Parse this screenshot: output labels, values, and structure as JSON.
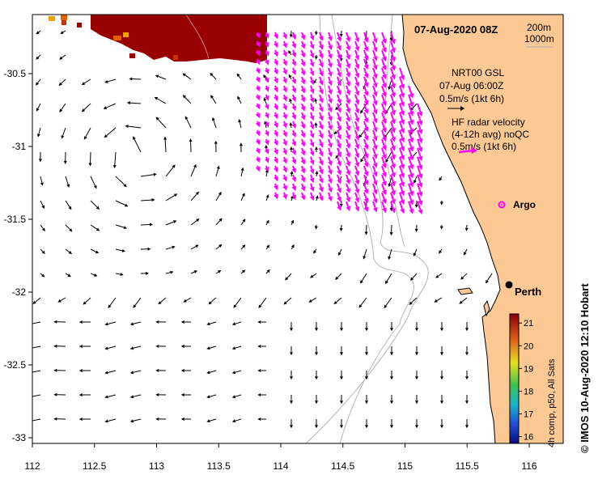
{
  "title": "07-Aug-2020 08Z",
  "depth_legend": [
    "200m",
    "1000m"
  ],
  "model_legend": {
    "lines": [
      "NRT00 GSL",
      "07-Aug 06:00Z",
      "0.5m/s (1kt 6h)"
    ],
    "arrow_color": "#000000"
  },
  "radar_legend": {
    "lines": [
      "HF radar velocity",
      "(4-12h avg) noQC",
      "0.5m/s (1kt 6h)"
    ],
    "arrow_color": "#ff00ff"
  },
  "places": {
    "perth": "Perth",
    "argo": "Argo"
  },
  "colorbar": {
    "label": "4h comp, p50, All Sats",
    "ticks": [
      "21",
      "20",
      "19",
      "18",
      "17",
      "16"
    ],
    "range": [
      15.7,
      21.4
    ]
  },
  "credit": "© IMOS 10-Aug-2020 12:10 Hobart",
  "colors": {
    "land": "#fcc995",
    "sst_warm": "#990000",
    "radar": "#ff00ff",
    "isobath": "#b4b4b4"
  },
  "chart_data": {
    "type": "map",
    "x_ticks": [
      "112",
      "112.5",
      "113",
      "113.5",
      "114",
      "114.5",
      "115",
      "115.5",
      "116"
    ],
    "y_ticks": [
      "-30.5",
      "-31",
      "-31.5",
      "-32",
      "-32.5",
      "-33"
    ],
    "xlim": [
      112,
      116.3
    ],
    "ylim": [
      -33.1,
      -30.1
    ],
    "perth": {
      "lon": 115.86,
      "lat": -31.95
    },
    "argo": {
      "lon": 115.72,
      "lat": -31.4
    },
    "radar_extent": {
      "lon": [
        113.8,
        115.1
      ],
      "lat": [
        -31.5,
        -30.1
      ]
    }
  }
}
